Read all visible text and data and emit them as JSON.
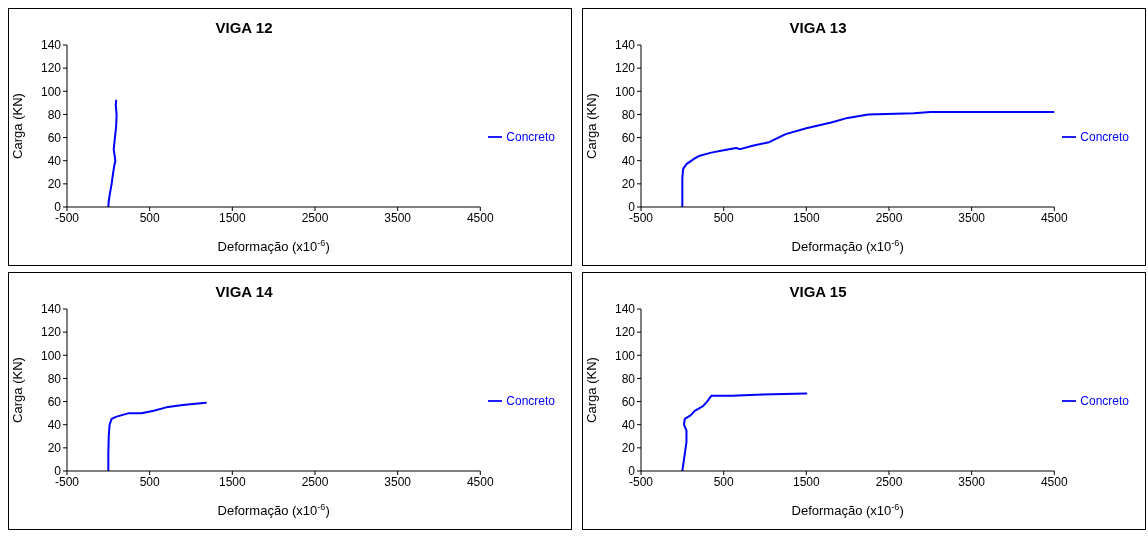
{
  "chart_data": [
    {
      "type": "line",
      "title": "VIGA 12",
      "xlabel": "Deformação (x10$^{-6}$)",
      "ylabel": "Carga (KN)",
      "xlim": [
        -500,
        4500
      ],
      "xticks": [
        -500,
        500,
        1500,
        2500,
        3500,
        4500
      ],
      "ylim": [
        0,
        140
      ],
      "yticks": [
        0,
        20,
        40,
        60,
        80,
        100,
        120,
        140
      ],
      "grid": false,
      "legend": "right",
      "marker": "none",
      "line_style": "solid",
      "series": [
        {
          "name": "Concreto",
          "color": "#0000ff",
          "x": [
            0,
            5,
            20,
            40,
            55,
            70,
            85,
            65,
            80,
            95,
            100,
            90,
            95
          ],
          "values": [
            0,
            5,
            12,
            20,
            28,
            35,
            40,
            50,
            60,
            70,
            80,
            88,
            92
          ]
        }
      ]
    },
    {
      "type": "line",
      "title": "VIGA 13",
      "xlabel": "Deformação (x10$^{-6}$)",
      "ylabel": "Carga (KN)",
      "xlim": [
        -500,
        4500
      ],
      "xticks": [
        -500,
        500,
        1500,
        2500,
        3500,
        4500
      ],
      "ylim": [
        0,
        140
      ],
      "yticks": [
        0,
        20,
        40,
        60,
        80,
        100,
        120,
        140
      ],
      "grid": false,
      "legend": "right",
      "marker": "none",
      "line_style": "solid",
      "series": [
        {
          "name": "Concreto",
          "color": "#0000ff",
          "x": [
            0,
            0,
            10,
            50,
            150,
            200,
            350,
            500,
            650,
            700,
            850,
            1050,
            1250,
            1500,
            1800,
            2000,
            2250,
            2800,
            3000,
            4500
          ],
          "values": [
            0,
            25,
            33,
            37,
            42,
            44,
            47,
            49,
            51,
            50,
            53,
            56,
            63,
            68,
            73,
            77,
            80,
            81,
            82,
            82
          ]
        }
      ]
    },
    {
      "type": "line",
      "title": "VIGA 14",
      "xlabel": "Deformação (x10$^{-6}$)",
      "ylabel": "Carga (KN)",
      "xlim": [
        -500,
        4500
      ],
      "xticks": [
        -500,
        500,
        1500,
        2500,
        3500,
        4500
      ],
      "ylim": [
        0,
        140
      ],
      "yticks": [
        0,
        20,
        40,
        60,
        80,
        100,
        120,
        140
      ],
      "grid": false,
      "legend": "right",
      "marker": "none",
      "line_style": "solid",
      "series": [
        {
          "name": "Concreto",
          "color": "#0000ff",
          "x": [
            0,
            0,
            5,
            15,
            40,
            100,
            250,
            400,
            550,
            700,
            900,
            1180
          ],
          "values": [
            0,
            15,
            30,
            40,
            45,
            47,
            50,
            50,
            52,
            55,
            57,
            59
          ]
        }
      ]
    },
    {
      "type": "line",
      "title": "VIGA 15",
      "xlabel": "Deformação (x10$^{-6}$)",
      "ylabel": "Carga (KN)",
      "xlim": [
        -500,
        4500
      ],
      "xticks": [
        -500,
        500,
        1500,
        2500,
        3500,
        4500
      ],
      "ylim": [
        0,
        140
      ],
      "yticks": [
        0,
        20,
        40,
        60,
        80,
        100,
        120,
        140
      ],
      "grid": false,
      "legend": "right",
      "marker": "none",
      "line_style": "solid",
      "series": [
        {
          "name": "Concreto",
          "color": "#0000ff",
          "x": [
            0,
            30,
            50,
            50,
            20,
            30,
            100,
            150,
            250,
            300,
            350,
            600,
            900,
            1500
          ],
          "values": [
            0,
            15,
            25,
            35,
            40,
            45,
            48,
            52,
            56,
            60,
            65,
            65,
            66,
            67
          ]
        }
      ]
    }
  ]
}
